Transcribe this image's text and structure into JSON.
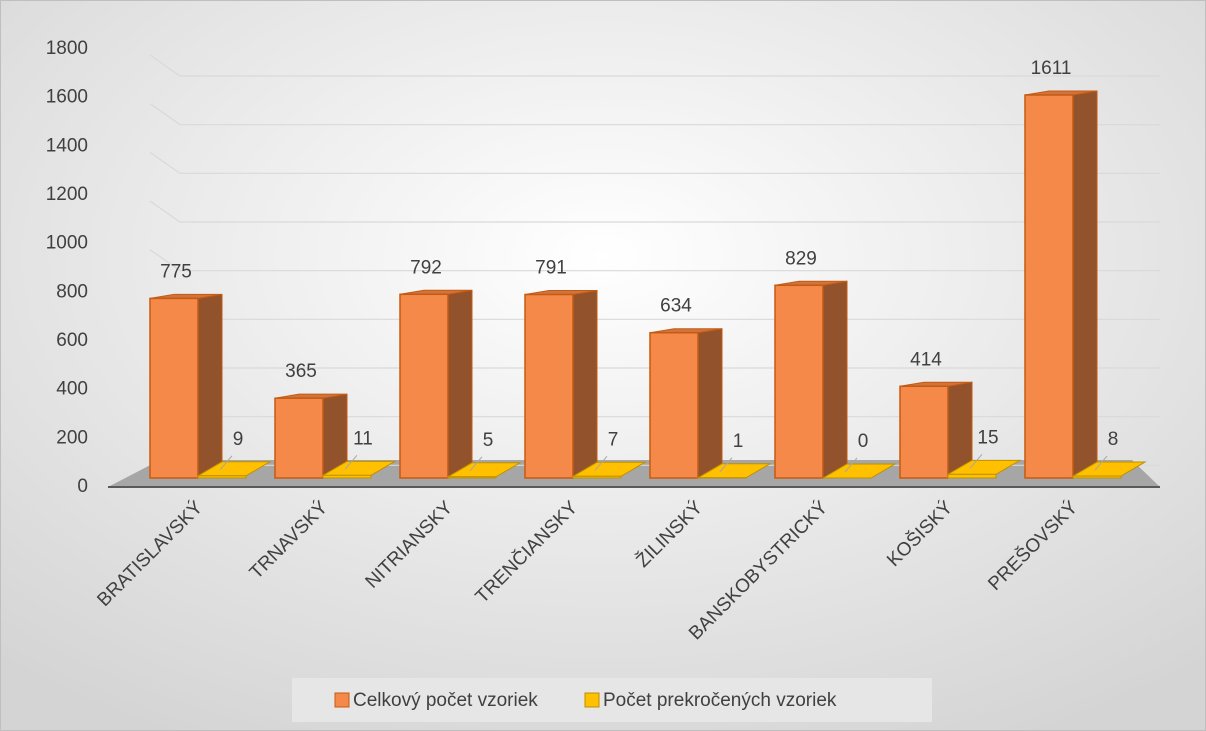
{
  "chart_data": {
    "type": "bar3d",
    "categories": [
      "BRATISLAVSKÝ",
      "TRNAVSKÝ",
      "NITRIANSKY",
      "TRENČIANSKY",
      "ŽILINSKÝ",
      "BANSKOBYSTRICKÝ",
      "KOŠISKÝ",
      "PREŠOVSKÝ"
    ],
    "series": [
      {
        "name": "Celkový počet vzoriek",
        "color": "#f4894a",
        "values": [
          775,
          365,
          792,
          791,
          634,
          829,
          414,
          1611
        ]
      },
      {
        "name": "Počet prekročených vzoriek",
        "color": "#ffc000",
        "values": [
          9,
          11,
          5,
          7,
          1,
          0,
          15,
          8
        ]
      }
    ],
    "ylim": [
      0,
      1800
    ],
    "yticks": [
      0,
      200,
      400,
      600,
      800,
      1000,
      1200,
      1400,
      1600,
      1800
    ],
    "grid": true,
    "legend": "bottom"
  }
}
